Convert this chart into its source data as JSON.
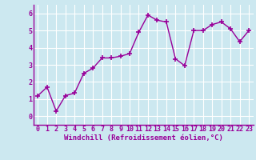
{
  "x": [
    0,
    1,
    2,
    3,
    4,
    5,
    6,
    7,
    8,
    9,
    10,
    11,
    12,
    13,
    14,
    15,
    16,
    17,
    18,
    19,
    20,
    21,
    22,
    23
  ],
  "y": [
    1.2,
    1.7,
    0.3,
    1.2,
    1.35,
    2.5,
    2.8,
    3.4,
    3.4,
    3.5,
    3.65,
    4.9,
    5.9,
    5.6,
    5.5,
    3.35,
    2.95,
    5.0,
    5.0,
    5.35,
    5.5,
    5.1,
    4.35,
    5.0
  ],
  "line_color": "#990099",
  "marker": "+",
  "marker_size": 4,
  "linewidth": 1.0,
  "xlabel": "Windchill (Refroidissement éolien,°C)",
  "xlabel_fontsize": 6.5,
  "bg_color": "#cce8f0",
  "grid_color": "#ffffff",
  "ylim": [
    -0.5,
    6.5
  ],
  "xlim": [
    -0.5,
    23.5
  ],
  "yticks": [
    0,
    1,
    2,
    3,
    4,
    5,
    6
  ],
  "xticks": [
    0,
    1,
    2,
    3,
    4,
    5,
    6,
    7,
    8,
    9,
    10,
    11,
    12,
    13,
    14,
    15,
    16,
    17,
    18,
    19,
    20,
    21,
    22,
    23
  ],
  "tick_fontsize": 6.0,
  "tick_color": "#990099",
  "spine_color": "#990099",
  "label_color": "#990099"
}
